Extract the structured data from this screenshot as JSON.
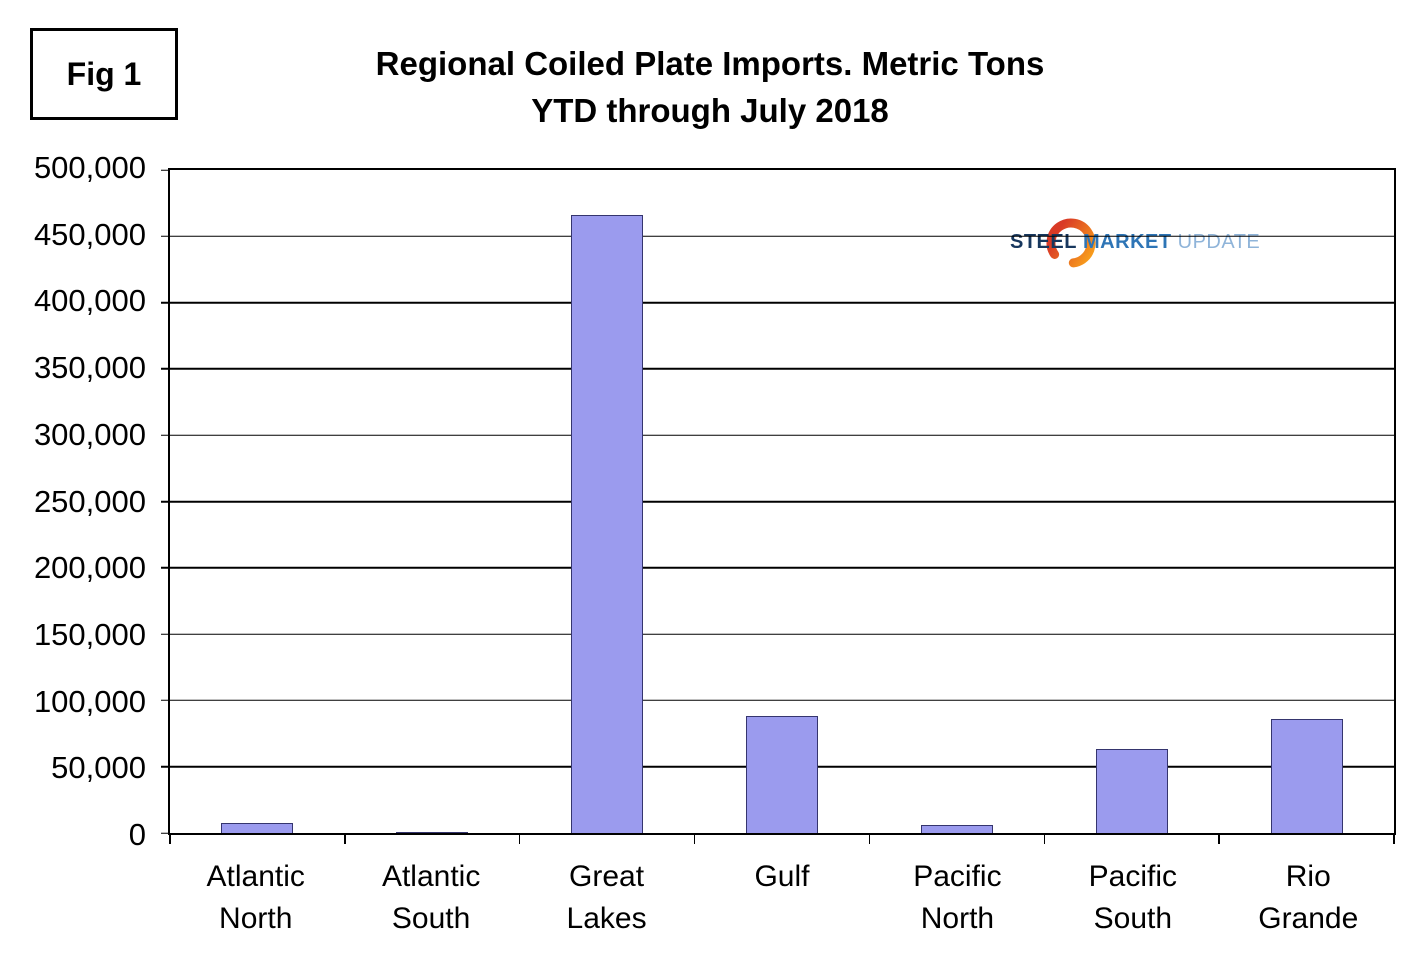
{
  "figure_label": "Fig 1",
  "logo": {
    "word1": "STEEL",
    "word2": "MARKET",
    "word3": "UPDATE",
    "orange_start": "#F9A11B",
    "orange_end": "#D93A26",
    "blue_dark": "#17375E",
    "blue_mid": "#2E75B6",
    "blue_light": "#8FB4D9"
  },
  "chart_data": {
    "type": "bar",
    "title": "Regional Coiled Plate Imports. Metric Tons YTD through July 2018",
    "title_lines": [
      "Regional Coiled Plate Imports. Metric Tons",
      "YTD through July 2018"
    ],
    "categories": [
      "Atlantic North",
      "Atlantic South",
      "Great Lakes",
      "Gulf",
      "Pacific North",
      "Pacific South",
      "Rio Grande"
    ],
    "values": [
      7500,
      1000,
      466000,
      88000,
      6000,
      63000,
      86000
    ],
    "xlabel": "",
    "ylabel": "Metric Tons",
    "ylim": [
      0,
      500000
    ],
    "ytick_step": 50000,
    "ytick_labels": [
      "0",
      "50,000",
      "100,000",
      "150,000",
      "200,000",
      "250,000",
      "300,000",
      "350,000",
      "400,000",
      "450,000",
      "500,000"
    ],
    "grid": true,
    "legend": "none",
    "bar_fill": "#9B9BEE",
    "bar_border": "#35356E",
    "gridline_color": "#000000"
  }
}
